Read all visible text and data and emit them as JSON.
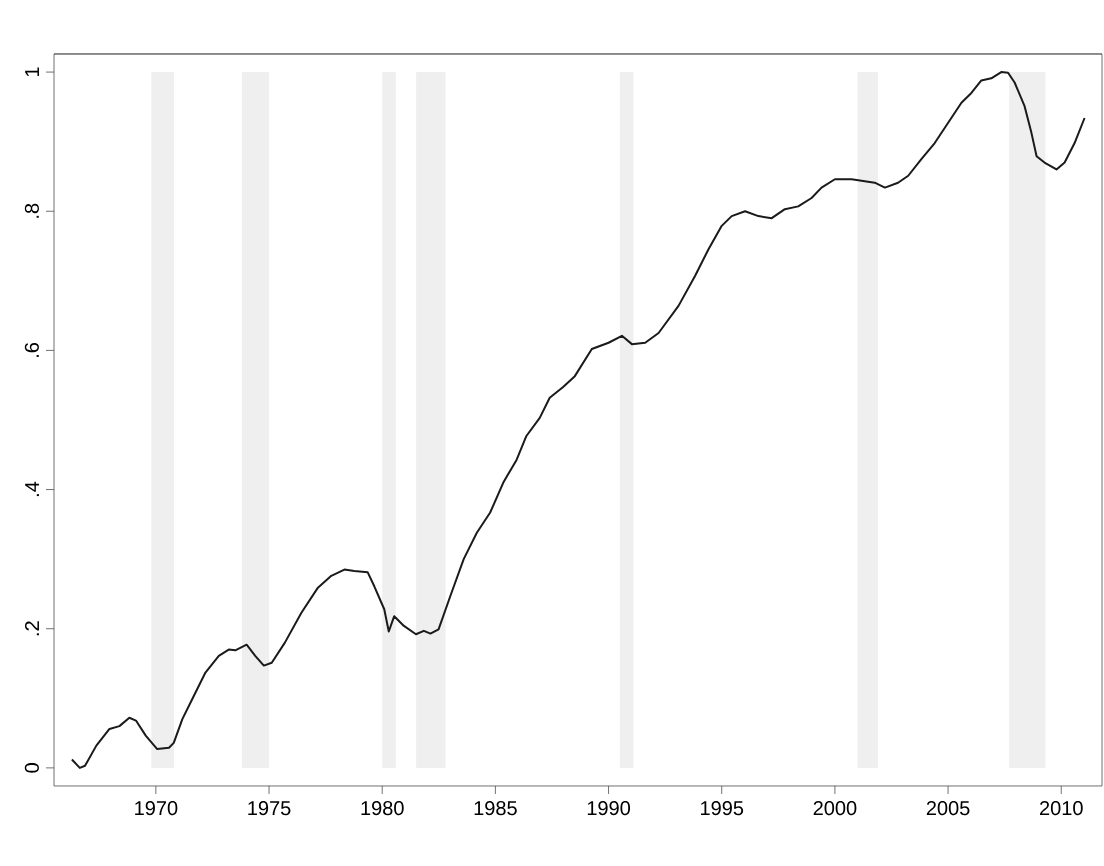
{
  "chart_data": {
    "type": "line",
    "x": [
      1966.29,
      1966.64,
      1966.87,
      1967.37,
      1967.95,
      1968.39,
      1968.83,
      1969.12,
      1969.56,
      1970.06,
      1970.58,
      1970.79,
      1971.17,
      1971.61,
      1972.19,
      1972.78,
      1973.22,
      1973.51,
      1974.01,
      1974.39,
      1974.77,
      1975.12,
      1975.7,
      1976.43,
      1977.16,
      1977.75,
      1978.33,
      1978.77,
      1979.36,
      1979.65,
      1980.09,
      1980.29,
      1980.53,
      1980.96,
      1981.49,
      1981.84,
      1982.13,
      1982.49,
      1983.01,
      1983.6,
      1984.18,
      1984.77,
      1985.35,
      1985.94,
      1986.37,
      1986.96,
      1987.4,
      1987.98,
      1988.51,
      1989.26,
      1990.0,
      1990.59,
      1991.03,
      1991.62,
      1992.21,
      1993.09,
      1993.82,
      1994.41,
      1995.0,
      1995.44,
      1996.03,
      1996.62,
      1997.21,
      1997.79,
      1998.38,
      1998.97,
      1999.41,
      2000.0,
      2000.74,
      2001.32,
      2001.76,
      2002.21,
      2002.79,
      2003.24,
      2003.82,
      2004.41,
      2005.0,
      2005.59,
      2006.03,
      2006.47,
      2006.91,
      2007.35,
      2007.65,
      2007.94,
      2008.38,
      2008.68,
      2008.91,
      2009.26,
      2009.79,
      2010.15,
      2010.59,
      2011.03
    ],
    "series": [
      {
        "color": "#1a1a1a",
        "values": [
          0.012,
          0.0,
          0.003,
          0.032,
          0.056,
          0.06,
          0.072,
          0.068,
          0.046,
          0.027,
          0.029,
          0.036,
          0.07,
          0.099,
          0.137,
          0.161,
          0.17,
          0.169,
          0.177,
          0.161,
          0.147,
          0.151,
          0.18,
          0.223,
          0.259,
          0.276,
          0.285,
          0.283,
          0.281,
          0.261,
          0.228,
          0.196,
          0.218,
          0.204,
          0.192,
          0.197,
          0.193,
          0.199,
          0.247,
          0.3,
          0.338,
          0.367,
          0.41,
          0.443,
          0.477,
          0.503,
          0.532,
          0.547,
          0.563,
          0.602,
          0.611,
          0.621,
          0.609,
          0.611,
          0.625,
          0.664,
          0.707,
          0.745,
          0.779,
          0.793,
          0.8,
          0.793,
          0.79,
          0.803,
          0.807,
          0.819,
          0.834,
          0.846,
          0.846,
          0.843,
          0.841,
          0.834,
          0.841,
          0.851,
          0.875,
          0.898,
          0.927,
          0.956,
          0.97,
          0.988,
          0.991,
          1.0,
          0.999,
          0.985,
          0.951,
          0.913,
          0.879,
          0.87,
          0.86,
          0.87,
          0.898,
          0.934
        ]
      }
    ],
    "xlim": [
      1965.5,
      2011.8
    ],
    "ylim": [
      -0.026,
      1.026
    ],
    "xticks": [
      1970,
      1975,
      1980,
      1985,
      1990,
      1995,
      2000,
      2005,
      2010
    ],
    "yticks": [
      0,
      {
        "value": 0.2,
        "label": ".2"
      },
      {
        "value": 0.4,
        "label": ".4"
      },
      {
        "value": 0.6,
        "label": ".6"
      },
      {
        "value": 0.8,
        "label": ".8"
      },
      1
    ],
    "bands": [
      {
        "axis": "x",
        "from": 1969.8,
        "to": 1970.8,
        "color": "#efefef"
      },
      {
        "axis": "x",
        "from": 1973.8,
        "to": 1975.0,
        "color": "#efefef"
      },
      {
        "axis": "x",
        "from": 1980.0,
        "to": 1980.6,
        "color": "#efefef"
      },
      {
        "axis": "x",
        "from": 1981.5,
        "to": 1982.8,
        "color": "#efefef"
      },
      {
        "axis": "x",
        "from": 1990.5,
        "to": 1991.1,
        "color": "#efefef"
      },
      {
        "axis": "x",
        "from": 2001.0,
        "to": 2001.9,
        "color": "#efefef"
      },
      {
        "axis": "x",
        "from": 2007.7,
        "to": 2009.3,
        "color": "#efefef"
      }
    ]
  }
}
